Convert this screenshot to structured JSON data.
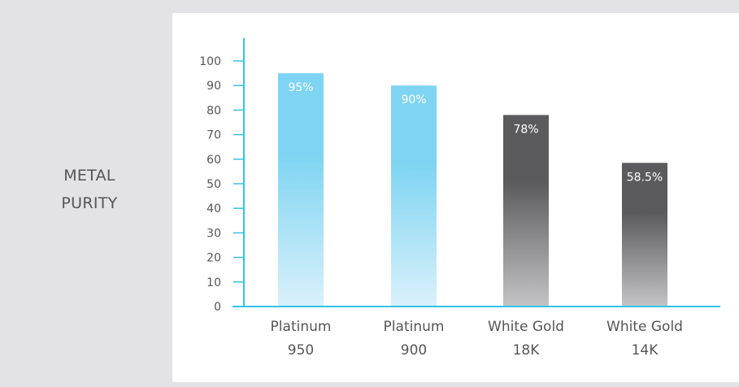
{
  "row_title": {
    "line1": "METAL",
    "line2": "PURITY"
  },
  "colors": {
    "axis": "#33c2e8",
    "platinum_top": "#7ed4f2",
    "platinum_bottom": "#daf1fb",
    "gold_top": "#5b5b5d",
    "gold_bottom": "#c4c4c7",
    "bar_label": "#ffffff",
    "tick_text": "#555555"
  },
  "chart_data": {
    "type": "bar",
    "title": "",
    "xlabel": "",
    "ylabel": "",
    "ylim": [
      0,
      100
    ],
    "yticks": [
      0,
      10,
      20,
      30,
      40,
      50,
      60,
      70,
      80,
      90,
      100
    ],
    "grid": false,
    "categories": [
      [
        "Platinum",
        "950"
      ],
      [
        "Platinum",
        "900"
      ],
      [
        "White Gold",
        "18K"
      ],
      [
        "White Gold",
        "14K"
      ]
    ],
    "values": [
      95,
      90,
      78,
      58.5
    ],
    "data_labels": [
      "95%",
      "90%",
      "78%",
      "58.5%"
    ],
    "bar_styles": [
      "platinum",
      "platinum",
      "gold",
      "gold"
    ]
  }
}
